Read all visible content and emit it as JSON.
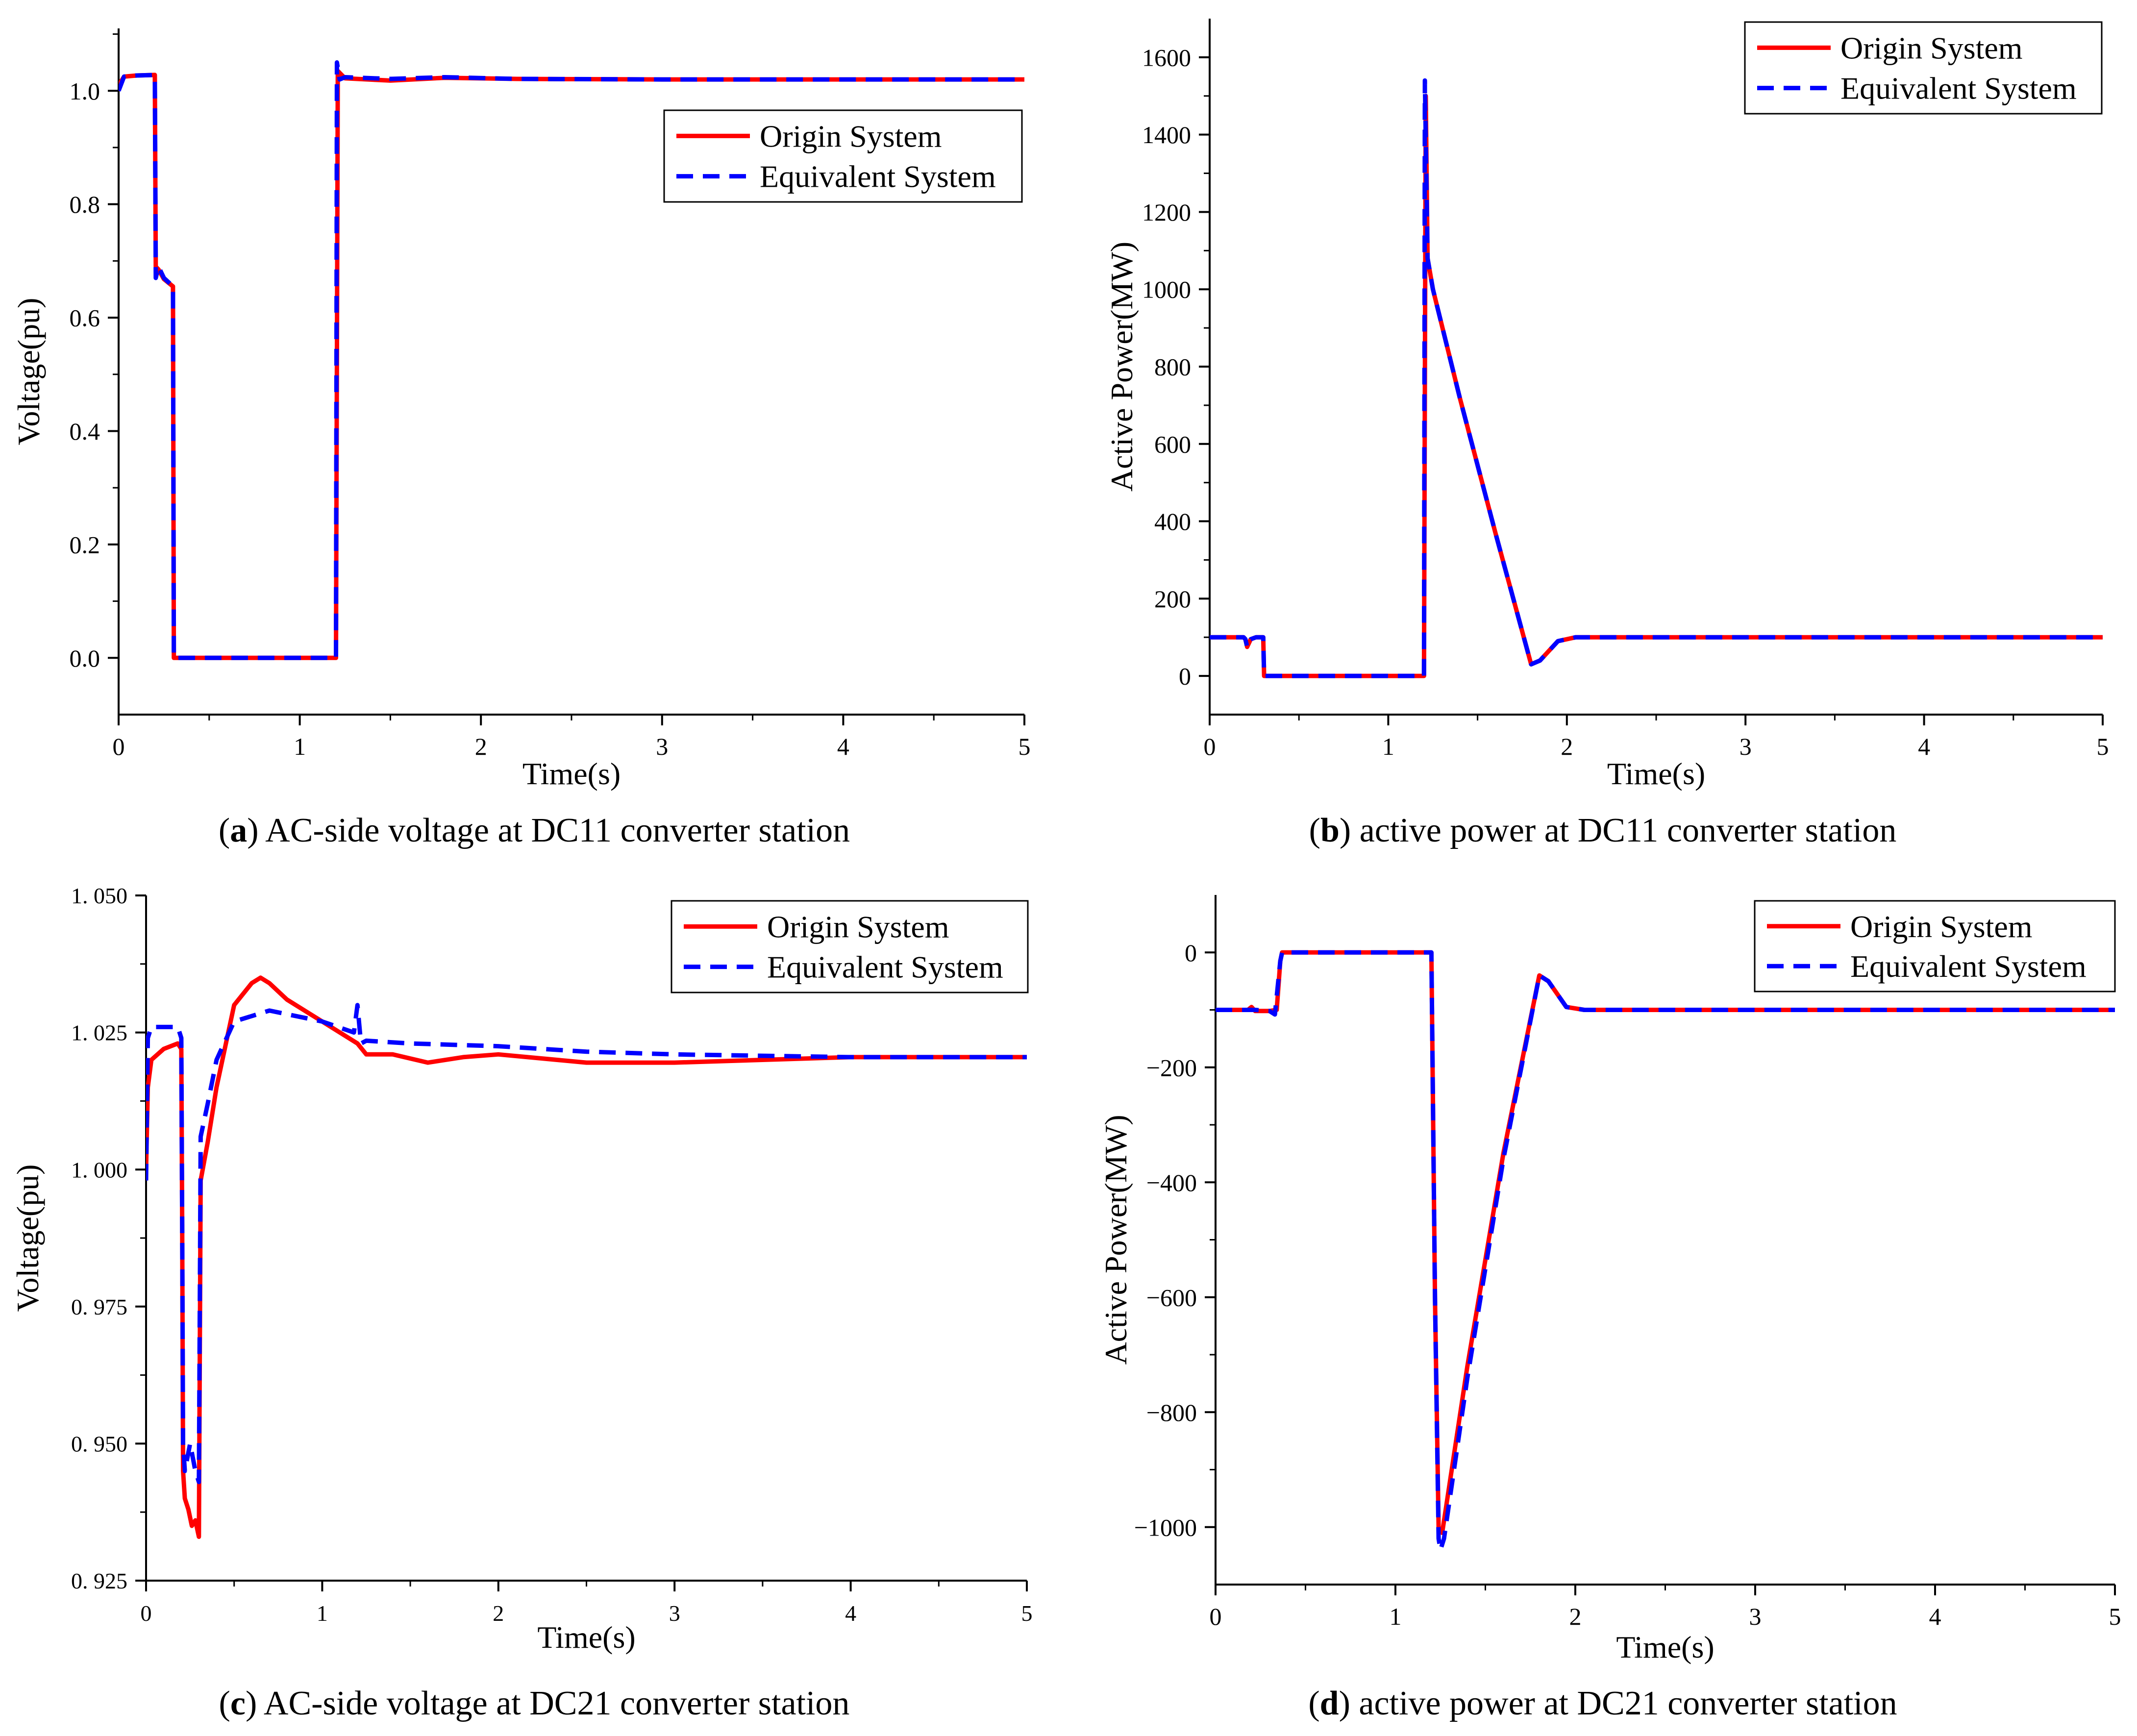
{
  "chart_data": [
    {
      "id": "a",
      "type": "line",
      "caption_letter": "a",
      "caption_text": "AC-side voltage at DC11 converter station",
      "xlabel": "Time(s)",
      "ylabel": "Voltage(pu)",
      "xlim": [
        0,
        5
      ],
      "ylim": [
        -0.1,
        1.11
      ],
      "xticks": [
        0,
        1,
        2,
        3,
        4,
        5
      ],
      "xtick_labels": [
        "0",
        "1",
        "2",
        "3",
        "4",
        "5"
      ],
      "yticks": [
        0.0,
        0.2,
        0.4,
        0.6,
        0.8,
        1.0
      ],
      "ytick_labels": [
        "0.0",
        "0.2",
        "0.4",
        "0.6",
        "0.8",
        "1.0"
      ],
      "legend_position": "top-right",
      "series": [
        {
          "name": "Origin System",
          "color": "#ff0000",
          "style": "solid",
          "x": [
            0,
            0.03,
            0.1,
            0.2,
            0.205,
            0.22,
            0.25,
            0.3,
            0.305,
            1.2,
            1.21,
            1.25,
            1.5,
            1.8,
            2.2,
            3,
            4,
            5
          ],
          "y": [
            1.01,
            1.025,
            1.027,
            1.028,
            0.69,
            0.685,
            0.668,
            0.655,
            0.0,
            0.0,
            1.035,
            1.022,
            1.018,
            1.023,
            1.021,
            1.02,
            1.02,
            1.02
          ]
        },
        {
          "name": "Equivalent System",
          "color": "#0000ff",
          "style": "dashed",
          "x": [
            0,
            0.03,
            0.1,
            0.2,
            0.205,
            0.22,
            0.25,
            0.3,
            0.305,
            1.2,
            1.205,
            1.22,
            1.25,
            1.5,
            1.8,
            2.2,
            3,
            4,
            5
          ],
          "y": [
            1.0,
            1.025,
            1.027,
            1.028,
            0.67,
            0.69,
            0.67,
            0.655,
            0.0,
            0.0,
            1.05,
            1.02,
            1.024,
            1.021,
            1.024,
            1.021,
            1.02,
            1.02,
            1.02
          ]
        }
      ]
    },
    {
      "id": "b",
      "type": "line",
      "caption_letter": "b",
      "caption_text": "active power at DC11 converter station",
      "xlabel": "Time(s)",
      "ylabel": "Active Power(MW)",
      "xlim": [
        0,
        5
      ],
      "ylim": [
        -100,
        1700
      ],
      "xticks": [
        0,
        1,
        2,
        3,
        4,
        5
      ],
      "xtick_labels": [
        "0",
        "1",
        "2",
        "3",
        "4",
        "5"
      ],
      "yticks": [
        0,
        200,
        400,
        600,
        800,
        1000,
        1200,
        1400,
        1600
      ],
      "ytick_labels": [
        "0",
        "200",
        "400",
        "600",
        "800",
        "1000",
        "1200",
        "1400",
        "1600"
      ],
      "legend_position": "top-right",
      "series": [
        {
          "name": "Origin System",
          "color": "#ff0000",
          "style": "solid",
          "x": [
            0,
            0.19,
            0.2,
            0.21,
            0.23,
            0.26,
            0.3,
            0.305,
            1.2,
            1.21,
            1.22,
            1.25,
            1.4,
            1.6,
            1.8,
            1.85,
            1.95,
            2.05,
            3,
            4,
            5
          ],
          "y": [
            100,
            100,
            95,
            75,
            95,
            100,
            100,
            0,
            0,
            1500,
            1080,
            1000,
            720,
            370,
            30,
            40,
            90,
            100,
            100,
            100,
            100
          ]
        },
        {
          "name": "Equivalent System",
          "color": "#0000ff",
          "style": "dashed",
          "x": [
            0,
            0.19,
            0.2,
            0.21,
            0.23,
            0.26,
            0.3,
            0.305,
            1.2,
            1.205,
            1.22,
            1.25,
            1.4,
            1.6,
            1.8,
            1.85,
            1.95,
            2.05,
            3,
            4,
            5
          ],
          "y": [
            100,
            100,
            95,
            75,
            95,
            100,
            100,
            0,
            0,
            1540,
            1080,
            1000,
            720,
            370,
            30,
            40,
            90,
            100,
            100,
            100,
            100
          ]
        }
      ]
    },
    {
      "id": "c",
      "type": "line",
      "caption_letter": "c",
      "caption_text": "AC-side voltage at DC21 converter station",
      "xlabel": "Time(s)",
      "ylabel": "Voltage(pu)",
      "xlim": [
        0,
        5
      ],
      "ylim": [
        0.925,
        1.05
      ],
      "xticks": [
        0,
        1,
        2,
        3,
        4,
        5
      ],
      "xtick_labels": [
        "0",
        "1",
        "2",
        "3",
        "4",
        "5"
      ],
      "yticks": [
        0.925,
        0.95,
        0.975,
        1.0,
        1.025,
        1.05
      ],
      "ytick_labels": [
        "0. 925",
        "0. 950",
        "0. 975",
        "1. 000",
        "1. 025",
        "1. 050"
      ],
      "legend_position": "top-right",
      "series": [
        {
          "name": "Origin System",
          "color": "#ff0000",
          "style": "solid",
          "x": [
            0,
            0.01,
            0.03,
            0.1,
            0.18,
            0.2,
            0.205,
            0.21,
            0.22,
            0.24,
            0.26,
            0.28,
            0.3,
            0.31,
            0.35,
            0.4,
            0.5,
            0.6,
            0.65,
            0.7,
            0.8,
            1.0,
            1.2,
            1.25,
            1.4,
            1.6,
            1.8,
            2.0,
            2.5,
            3.0,
            3.5,
            4.0,
            5.0
          ],
          "y": [
            1.0,
            1.015,
            1.02,
            1.022,
            1.023,
            1.022,
            0.99,
            0.945,
            0.94,
            0.938,
            0.935,
            0.936,
            0.933,
            0.998,
            1.005,
            1.015,
            1.03,
            1.034,
            1.035,
            1.034,
            1.031,
            1.027,
            1.023,
            1.021,
            1.021,
            1.0195,
            1.0205,
            1.021,
            1.0195,
            1.0195,
            1.02,
            1.0205,
            1.0205
          ]
        },
        {
          "name": "Equivalent System",
          "color": "#0000ff",
          "style": "dashed",
          "x": [
            0,
            0.01,
            0.03,
            0.1,
            0.18,
            0.2,
            0.205,
            0.21,
            0.22,
            0.25,
            0.28,
            0.3,
            0.31,
            0.35,
            0.4,
            0.5,
            0.7,
            1.0,
            1.18,
            1.2,
            1.22,
            1.25,
            1.5,
            2.0,
            2.5,
            3.0,
            4.0,
            5.0
          ],
          "y": [
            0.998,
            1.024,
            1.026,
            1.026,
            1.026,
            1.024,
            0.99,
            0.95,
            0.945,
            0.95,
            0.945,
            0.943,
            1.006,
            1.012,
            1.02,
            1.027,
            1.029,
            1.027,
            1.025,
            1.03,
            1.023,
            1.0235,
            1.023,
            1.0225,
            1.0215,
            1.021,
            1.0205,
            1.0205
          ]
        }
      ]
    },
    {
      "id": "d",
      "type": "line",
      "caption_letter": "d",
      "caption_text": "active power at DC21 converter station",
      "xlabel": "Time(s)",
      "ylabel": "Active Power(MW)",
      "xlim": [
        0,
        5
      ],
      "ylim": [
        -1100,
        100
      ],
      "xticks": [
        0,
        1,
        2,
        3,
        4,
        5
      ],
      "xtick_labels": [
        "0",
        "1",
        "2",
        "3",
        "4",
        "5"
      ],
      "yticks": [
        -1000,
        -800,
        -600,
        -400,
        -200,
        0
      ],
      "ytick_labels": [
        "−1000",
        "−800",
        "−600",
        "−400",
        "−200",
        "0"
      ],
      "legend_position": "top-right",
      "series": [
        {
          "name": "Origin System",
          "color": "#ff0000",
          "style": "solid",
          "x": [
            0,
            0.18,
            0.2,
            0.22,
            0.3,
            0.34,
            0.36,
            0.37,
            1.2,
            1.22,
            1.24,
            1.26,
            1.4,
            1.6,
            1.8,
            1.85,
            1.95,
            2.05,
            3,
            4,
            5
          ],
          "y": [
            -100,
            -100,
            -95,
            -102,
            -102,
            -100,
            -15,
            0,
            0,
            -600,
            -1000,
            -1010,
            -720,
            -350,
            -40,
            -50,
            -95,
            -100,
            -100,
            -100,
            -100
          ]
        },
        {
          "name": "Equivalent System",
          "color": "#0000ff",
          "style": "dashed",
          "x": [
            0,
            0.18,
            0.22,
            0.3,
            0.33,
            0.36,
            0.37,
            1.2,
            1.22,
            1.24,
            1.25,
            1.27,
            1.4,
            1.6,
            1.8,
            1.85,
            1.95,
            2.05,
            3,
            4,
            5
          ],
          "y": [
            -100,
            -100,
            -100,
            -102,
            -108,
            -15,
            0,
            0,
            -600,
            -1020,
            -1040,
            -1020,
            -740,
            -360,
            -40,
            -50,
            -95,
            -100,
            -100,
            -100,
            -100
          ]
        }
      ]
    }
  ]
}
